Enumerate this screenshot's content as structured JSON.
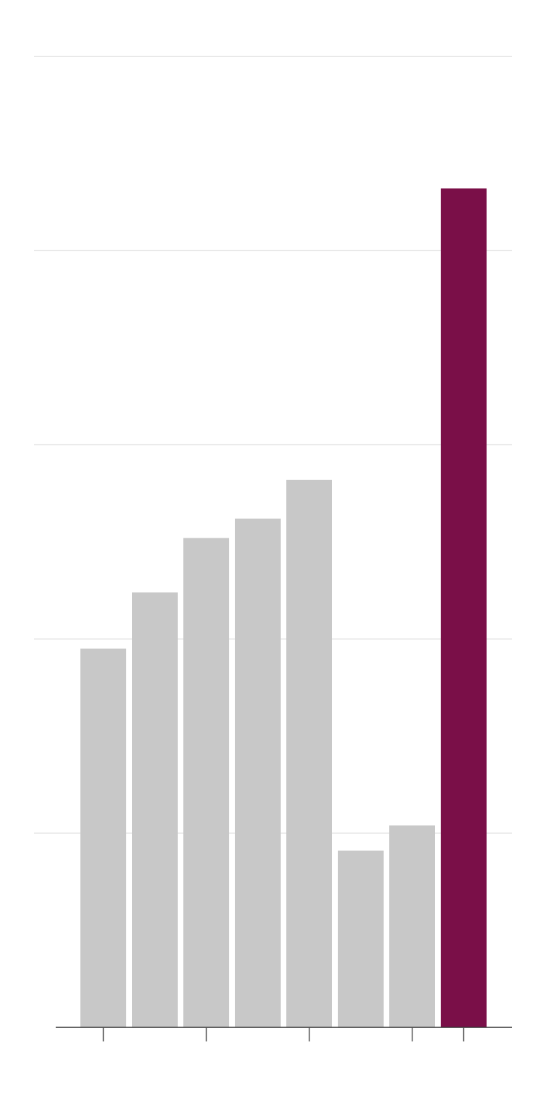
{
  "chart_data": {
    "type": "bar",
    "categories": [
      null,
      null,
      null,
      null,
      null,
      null,
      null,
      null
    ],
    "values": [
      1.95,
      2.24,
      2.52,
      2.62,
      2.82,
      0.91,
      1.04,
      4.32
    ],
    "colors": [
      "#c8c8c8",
      "#c8c8c8",
      "#c8c8c8",
      "#c8c8c8",
      "#c8c8c8",
      "#c8c8c8",
      "#c8c8c8",
      "#7a0f48"
    ],
    "ylim": [
      0,
      5
    ],
    "yticks": [
      0,
      1,
      2,
      3,
      4,
      5
    ],
    "grid": true,
    "xticks": [
      0,
      2,
      4,
      6,
      7
    ]
  }
}
